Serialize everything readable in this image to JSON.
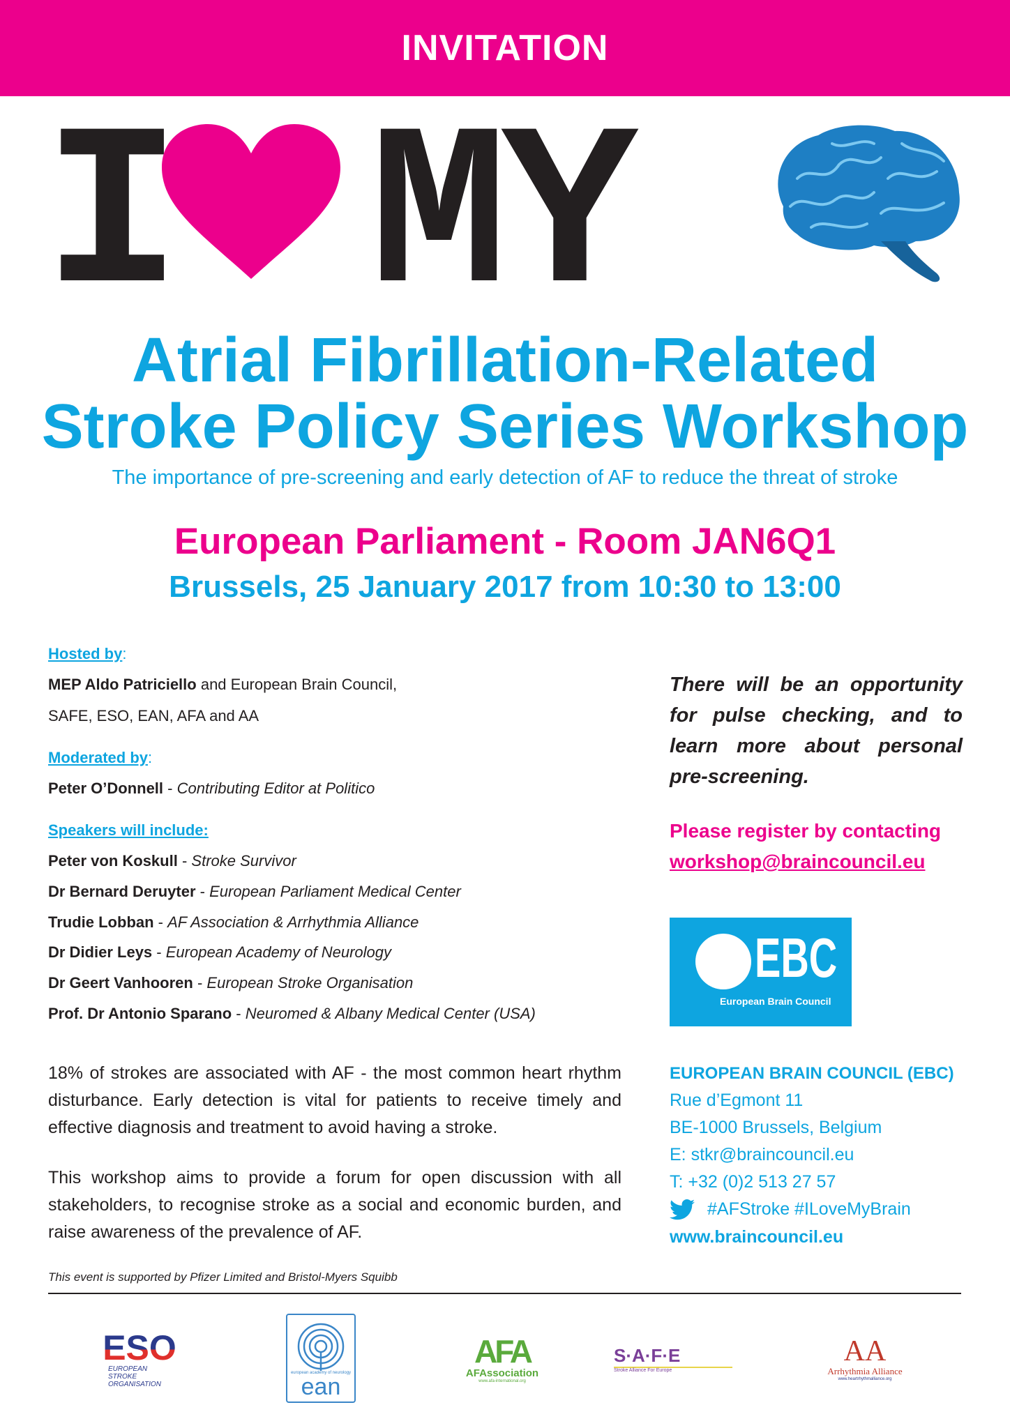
{
  "banner": {
    "title": "INVITATION"
  },
  "hero": {
    "letter_i": "I",
    "letters_my": "MY",
    "heart_color": "#ec008c",
    "brain_color": "#1e7fc4"
  },
  "event": {
    "title_line1": "Atrial Fibrillation-Related",
    "title_line2": "Stroke Policy Series Workshop",
    "subtitle": "The importance of pre-screening and early detection of AF to reduce the threat of stroke",
    "venue": "European Parliament - Room JAN6Q1",
    "datetime": "Brussels, 25 January 2017 from 10:30 to 13:00"
  },
  "hosted": {
    "heading": "Hosted by",
    "colon": ":",
    "line1_bold": "MEP Aldo Patriciello",
    "line1_rest": " and European Brain Council,",
    "line2": "SAFE, ESO, EAN, AFA and AA"
  },
  "moderated": {
    "heading": "Moderated by",
    "colon": ":",
    "name": "Peter O’Donnell",
    "role": "Contributing Editor at Politico"
  },
  "speakers": {
    "heading": "Speakers will include:",
    "items": [
      {
        "name": "Peter von Koskull",
        "role": "Stroke Survivor"
      },
      {
        "name": "Dr Bernard Deruyter",
        "role": "European Parliament Medical Center"
      },
      {
        "name": "Trudie Lobban",
        "role": "AF Association & Arrhythmia Alliance"
      },
      {
        "name": "Dr Didier Leys",
        "role": "European Academy of Neurology"
      },
      {
        "name": "Dr Geert Vanhooren",
        "role": "European Stroke Organisation"
      },
      {
        "name": "Prof. Dr Antonio Sparano",
        "role": "Neuromed & Albany Medical Center (USA)"
      }
    ]
  },
  "sep": " - ",
  "paragraphs": [
    "18% of strokes are associated with AF - the most common heart rhythm disturbance. Early detection is vital for patients to receive timely and effective diagnosis and treatment to avoid having a stroke.",
    "This workshop aims to provide a forum for open discussion with all stakeholders, to recognise stroke as a social and economic burden, and raise awareness of the prevalence of AF."
  ],
  "support_note": "This event is supported by Pfizer Limited and Bristol-Myers Squibb",
  "right": {
    "opportunity": "There will be an opportunity for pulse checking, and to learn more about personal pre-screening.",
    "register_text": "Please register by contacting",
    "register_email": "workshop@braincouncil.eu"
  },
  "ebc": {
    "logo_letters": "EBC",
    "logo_name": "European Brain Council",
    "name": "EUROPEAN BRAIN COUNCIL (EBC)",
    "address1": "Rue d’Egmont 11",
    "address2": "BE-1000 Brussels, Belgium",
    "email": "E: stkr@braincouncil.eu",
    "phone": "T: +32 (0)2 513 27 57",
    "hashtags": "#AFStroke #ILoveMyBrain",
    "website": "www.braincouncil.eu"
  },
  "partners": [
    {
      "letters": "ESO",
      "name": "EUROPEAN STROKE ORGANISATION"
    },
    {
      "letters": "ean",
      "name": "european academy of neurology"
    },
    {
      "letters": "AFA",
      "name": "AFAssociation",
      "url": "www.afa-international.org"
    },
    {
      "letters": "S·A·F·E",
      "name": "Stroke Alliance For Europe"
    },
    {
      "letters": "AA",
      "name": "Arrhythmia Alliance",
      "url": "www.heartrhythmalliance.org"
    }
  ],
  "colors": {
    "pink": "#ec008c",
    "blue": "#0ea5e0",
    "text": "#231f20"
  }
}
